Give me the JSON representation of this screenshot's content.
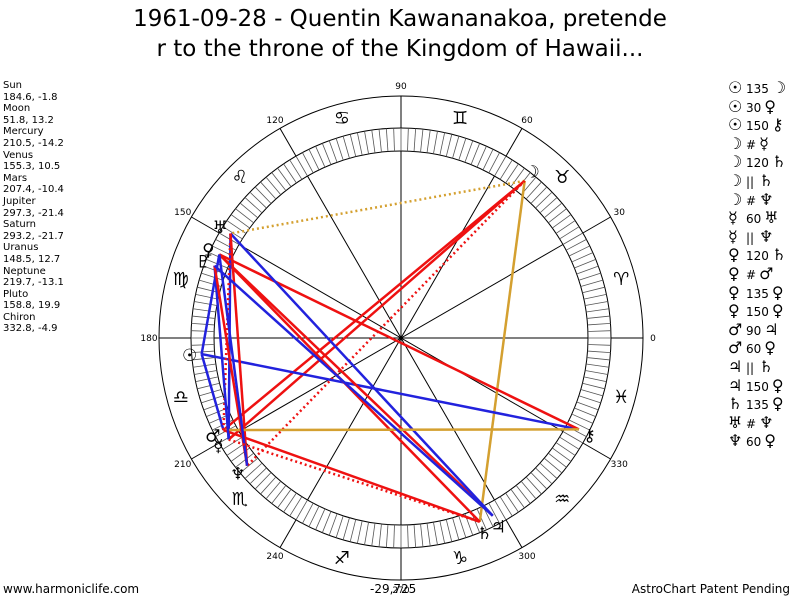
{
  "title_line1": "1961-09-28 - Quentin Kawananakoa, pretende",
  "title_line2": "r to the throne of the Kingdom of Hawaii...",
  "planets": [
    {
      "name": "Sun",
      "values": "184.6, -1.8"
    },
    {
      "name": "Moon",
      "values": "51.8, 13.2"
    },
    {
      "name": "Mercury",
      "values": "210.5, -14.2"
    },
    {
      "name": "Venus",
      "values": "155.3, 10.5"
    },
    {
      "name": "Mars",
      "values": "207.4, -10.4"
    },
    {
      "name": "Jupiter",
      "values": "297.3, -21.4"
    },
    {
      "name": "Saturn",
      "values": "293.2, -21.7"
    },
    {
      "name": "Uranus",
      "values": "148.5, 12.7"
    },
    {
      "name": "Neptune",
      "values": "219.7, -13.1"
    },
    {
      "name": "Pluto",
      "values": "158.8, 19.9"
    },
    {
      "name": "Chiron",
      "values": "332.8, -4.9"
    }
  ],
  "aspects": [
    {
      "p1": "☉",
      "angle": "135",
      "p2": "☽"
    },
    {
      "p1": "☉",
      "angle": "30",
      "p2": "♀"
    },
    {
      "p1": "☉",
      "angle": "150",
      "p2": "⚷"
    },
    {
      "p1": "☽",
      "angle": "#",
      "p2": "☿"
    },
    {
      "p1": "☽",
      "angle": "120",
      "p2": "♄"
    },
    {
      "p1": "☽",
      "angle": "||",
      "p2": "♄"
    },
    {
      "p1": "☽",
      "angle": "#",
      "p2": "♆"
    },
    {
      "p1": "☿",
      "angle": "60",
      "p2": "♅"
    },
    {
      "p1": "☿",
      "angle": "||",
      "p2": "♆"
    },
    {
      "p1": "♀",
      "angle": "120",
      "p2": "♄"
    },
    {
      "p1": "♀",
      "angle": "#",
      "p2": "♂"
    },
    {
      "p1": "♀",
      "angle": "135",
      "p2": "♀"
    },
    {
      "p1": "♀",
      "angle": "150",
      "p2": "♀"
    },
    {
      "p1": "♂",
      "angle": "90",
      "p2": "♃"
    },
    {
      "p1": "♂",
      "angle": "60",
      "p2": "♀"
    },
    {
      "p1": "♃",
      "angle": "||",
      "p2": "♄"
    },
    {
      "p1": "♃",
      "angle": "150",
      "p2": "♀"
    },
    {
      "p1": "♄",
      "angle": "135",
      "p2": "♀"
    },
    {
      "p1": "♅",
      "angle": "#",
      "p2": "♆"
    },
    {
      "p1": "♆",
      "angle": "60",
      "p2": "♀"
    }
  ],
  "footer_left": "www.harmoniclife.com",
  "footer_middle": "-29,725",
  "footer_right": "AstroChart Patent Pending",
  "wheel": {
    "degree_labels": [
      "0",
      "30",
      "60",
      "90",
      "120",
      "150",
      "180",
      "210",
      "240",
      "270",
      "300",
      "330"
    ],
    "sign_glyphs": [
      "♈",
      "♉",
      "♊",
      "♋",
      "♌",
      "♍",
      "♎",
      "♏",
      "♐",
      "♑",
      "♒",
      "♓"
    ],
    "planet_positions": [
      {
        "name": "Sun",
        "glyph": "☉",
        "lon": 184.6
      },
      {
        "name": "Moon",
        "glyph": "☽",
        "lon": 51.8
      },
      {
        "name": "Mercury",
        "glyph": "☿",
        "lon": 210.5
      },
      {
        "name": "Venus",
        "glyph": "♀",
        "lon": 155.3
      },
      {
        "name": "Mars",
        "glyph": "♂",
        "lon": 207.4
      },
      {
        "name": "Jupiter",
        "glyph": "♃",
        "lon": 297.3
      },
      {
        "name": "Saturn",
        "glyph": "♄",
        "lon": 293.2
      },
      {
        "name": "Uranus",
        "glyph": "♅",
        "lon": 148.5
      },
      {
        "name": "Neptune",
        "glyph": "♆",
        "lon": 219.7
      },
      {
        "name": "Pluto",
        "glyph": "♇",
        "lon": 158.8
      },
      {
        "name": "Chiron",
        "glyph": "⚷",
        "lon": 332.8
      }
    ],
    "aspect_lines": [
      {
        "from": "Moon",
        "to": "Mercury",
        "color": "#ee1111",
        "style": "solid"
      },
      {
        "from": "Moon",
        "to": "Mars",
        "color": "#ee1111",
        "style": "solid"
      },
      {
        "from": "Moon",
        "to": "Saturn",
        "color": "#d4a030",
        "style": "solid"
      },
      {
        "from": "Moon",
        "to": "Uranus",
        "color": "#d4a030",
        "style": "dotted"
      },
      {
        "from": "Moon",
        "to": "Neptune",
        "color": "#ee1111",
        "style": "dotted"
      },
      {
        "from": "Sun",
        "to": "Mars",
        "color": "#2222dd",
        "style": "solid"
      },
      {
        "from": "Sun",
        "to": "Chiron",
        "color": "#2222dd",
        "style": "solid"
      },
      {
        "from": "Sun",
        "to": "Venus",
        "color": "#2222dd",
        "style": "solid"
      },
      {
        "from": "Venus",
        "to": "Saturn",
        "color": "#ee1111",
        "style": "solid"
      },
      {
        "from": "Venus",
        "to": "Jupiter",
        "color": "#ee1111",
        "style": "solid"
      },
      {
        "from": "Venus",
        "to": "Chiron",
        "color": "#ee1111",
        "style": "solid"
      },
      {
        "from": "Uranus",
        "to": "Jupiter",
        "color": "#2222dd",
        "style": "solid"
      },
      {
        "from": "Uranus",
        "to": "Mercury",
        "color": "#2222dd",
        "style": "solid"
      },
      {
        "from": "Uranus",
        "to": "Neptune",
        "color": "#ee1111",
        "style": "solid"
      },
      {
        "from": "Mars",
        "to": "Chiron",
        "color": "#d4a030",
        "style": "solid"
      },
      {
        "from": "Mars",
        "to": "Saturn",
        "color": "#ee1111",
        "style": "solid"
      },
      {
        "from": "Mars",
        "to": "Uranus",
        "color": "#ee1111",
        "style": "dotted"
      },
      {
        "from": "Pluto",
        "to": "Mercury",
        "color": "#2222dd",
        "style": "solid"
      },
      {
        "from": "Pluto",
        "to": "Neptune",
        "color": "#ee1111",
        "style": "solid"
      },
      {
        "from": "Pluto",
        "to": "Jupiter",
        "color": "#2222dd",
        "style": "solid"
      },
      {
        "from": "Venus",
        "to": "Neptune",
        "color": "#2222dd",
        "style": "solid"
      },
      {
        "from": "Mercury",
        "to": "Saturn",
        "color": "#ee1111",
        "style": "dotted"
      }
    ]
  }
}
